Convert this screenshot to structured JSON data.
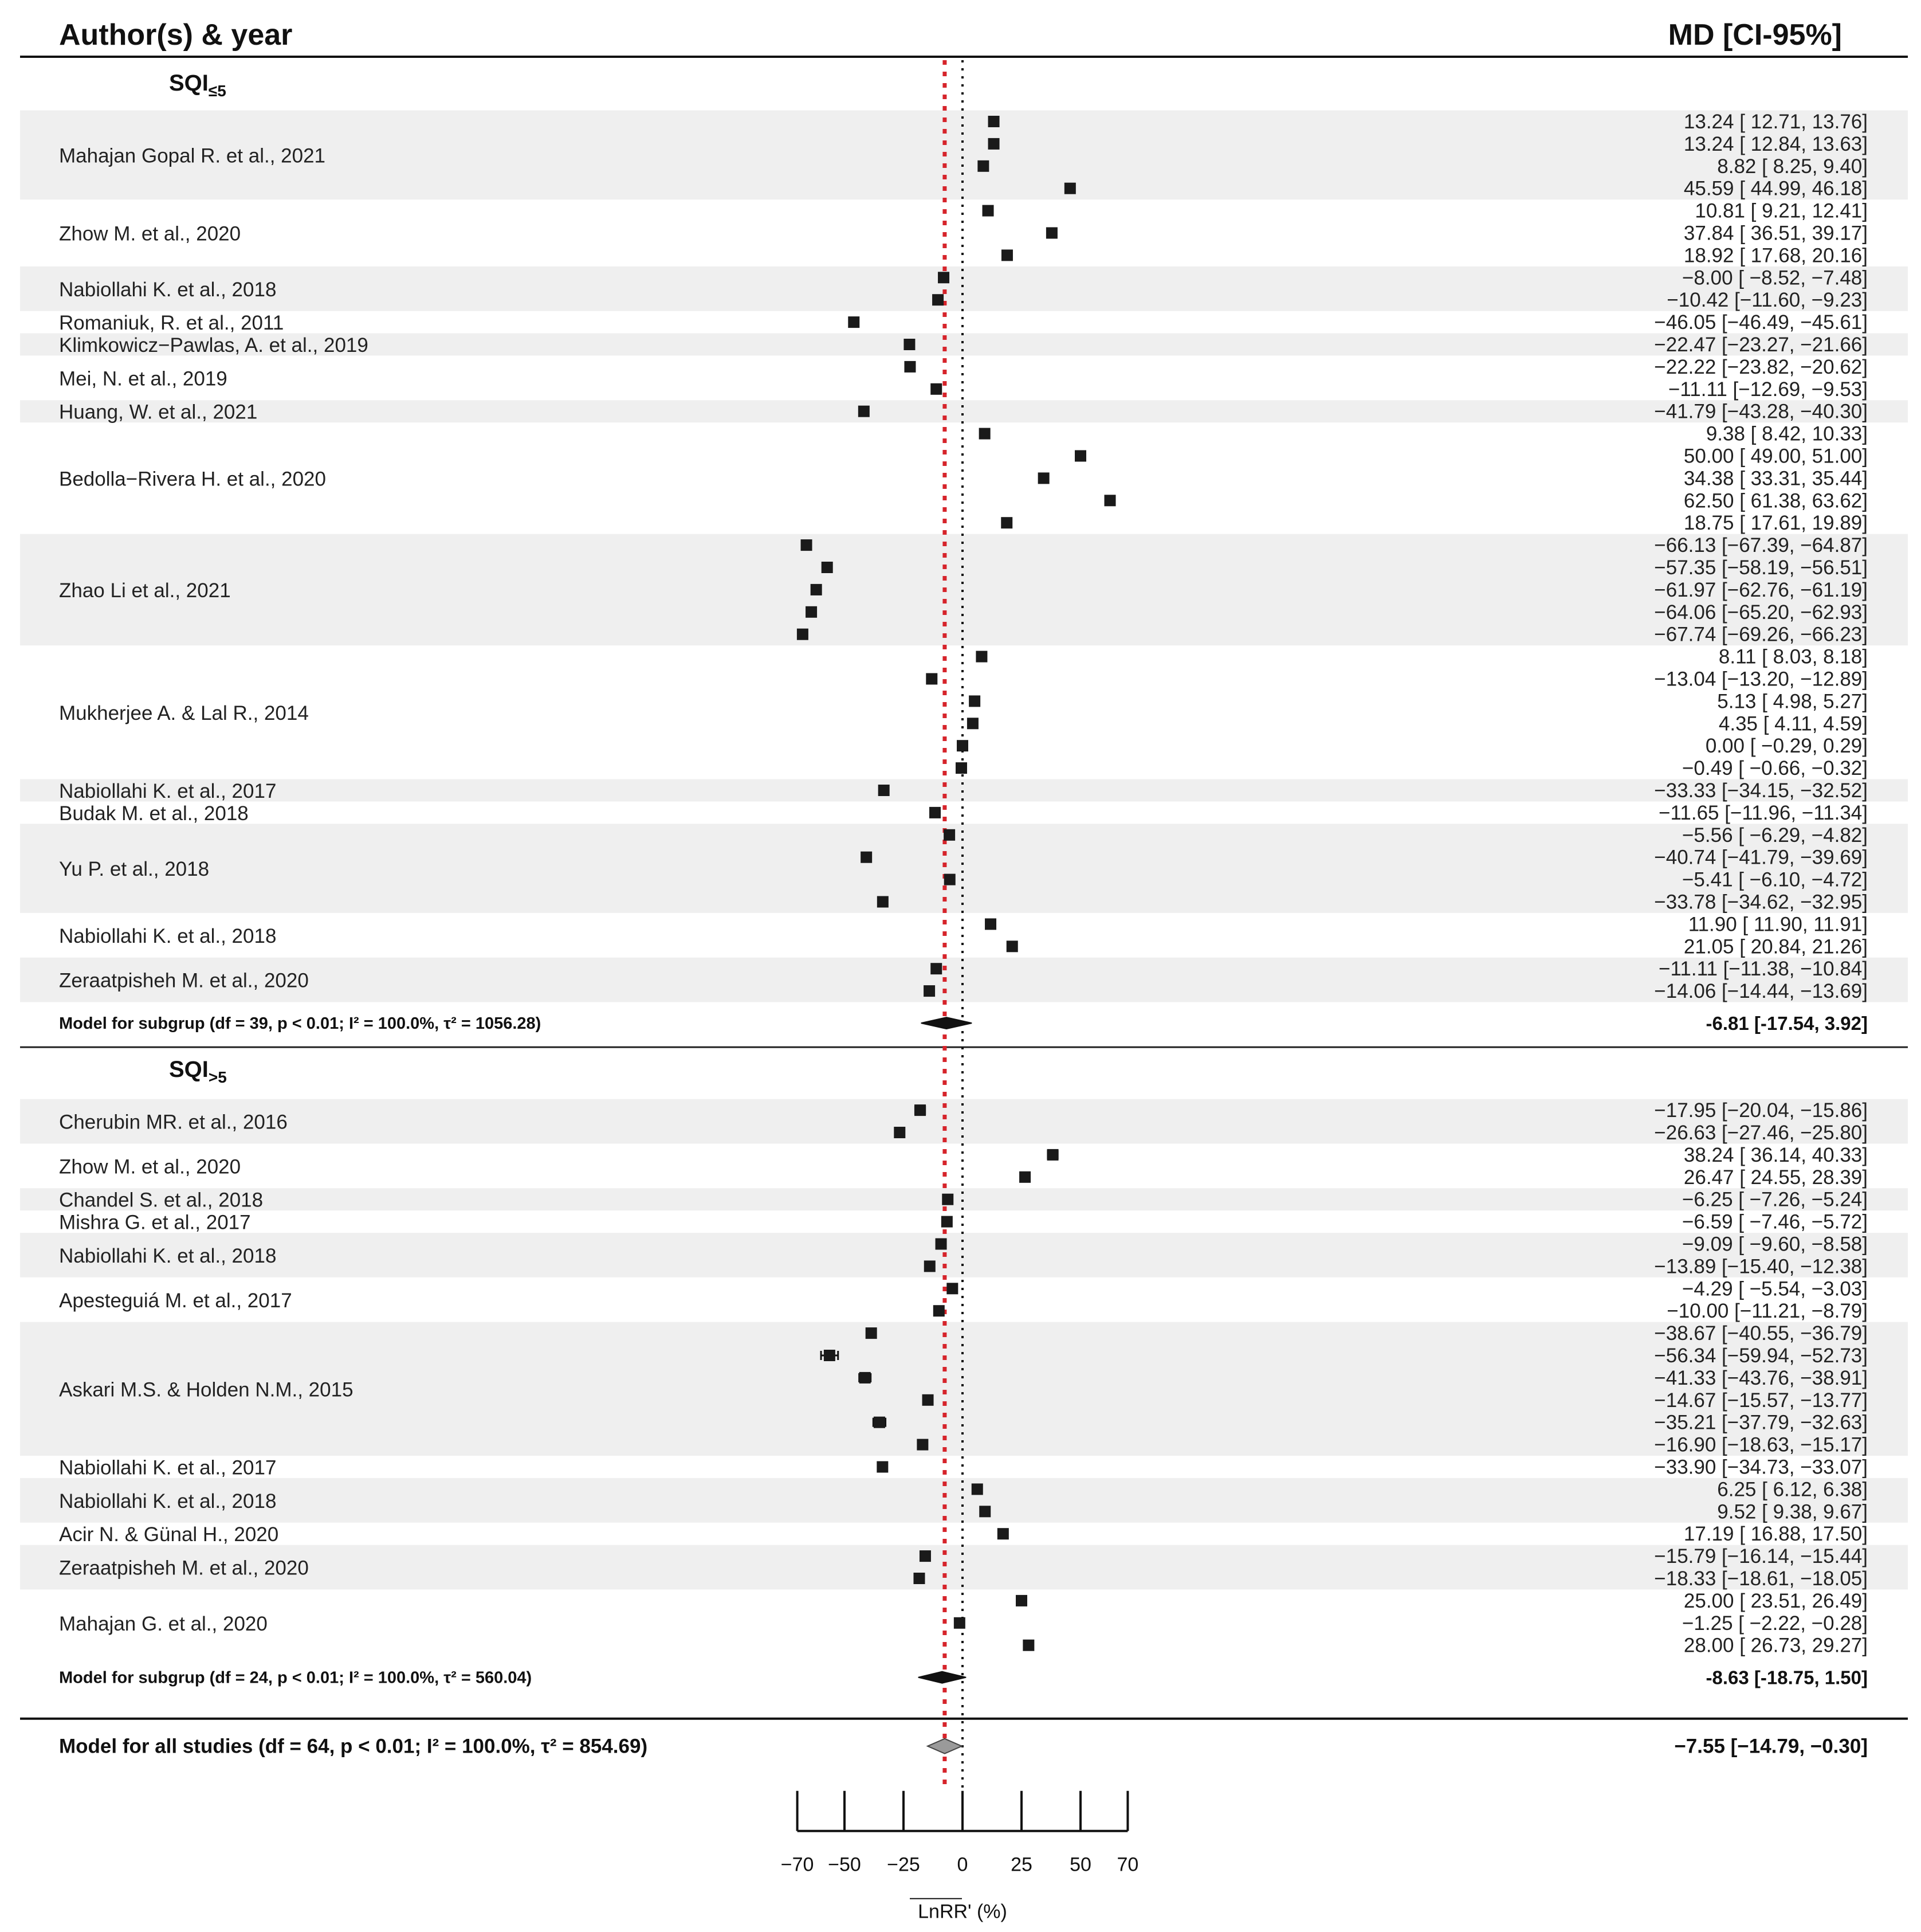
{
  "chart_data": {
    "type": "forest",
    "header_left": "Author(s) & year",
    "header_right": "MD [CI-95%]",
    "xlabel": "LnRR' (%)",
    "x_ticks": [
      -70,
      -50,
      -25,
      0,
      25,
      50,
      70
    ],
    "x_range": [
      -70,
      70
    ],
    "reference_line": 0,
    "overall_estimate_line": -7.55,
    "groups": [
      {
        "title_main": "SQI",
        "title_sub": "≤5",
        "model_label": "Model for subgrup (df = 39, p < 0.01; I² = 100.0%, τ² = 1056.28)",
        "model_text": "-6.81 [-17.54, 3.92]",
        "model": {
          "est": -6.81,
          "lo": -17.54,
          "hi": 3.92
        },
        "studies": [
          {
            "label": "Mahajan Gopal R. et al., 2021",
            "rows": [
              {
                "est": 13.24,
                "lo": 12.71,
                "hi": 13.76,
                "text": "13.24 [ 12.71,  13.76]"
              },
              {
                "est": 13.24,
                "lo": 12.84,
                "hi": 13.63,
                "text": "13.24 [ 12.84,  13.63]"
              },
              {
                "est": 8.82,
                "lo": 8.25,
                "hi": 9.4,
                "text": "8.82 [  8.25,   9.40]"
              },
              {
                "est": 45.59,
                "lo": 44.99,
                "hi": 46.18,
                "text": "45.59 [ 44.99,  46.18]"
              }
            ]
          },
          {
            "label": "Zhow M. et al., 2020",
            "rows": [
              {
                "est": 10.81,
                "lo": 9.21,
                "hi": 12.41,
                "text": "10.81 [  9.21,  12.41]"
              },
              {
                "est": 37.84,
                "lo": 36.51,
                "hi": 39.17,
                "text": "37.84 [ 36.51,  39.17]"
              },
              {
                "est": 18.92,
                "lo": 17.68,
                "hi": 20.16,
                "text": "18.92 [ 17.68,  20.16]"
              }
            ]
          },
          {
            "label": "Nabiollahi K. et al., 2018",
            "rows": [
              {
                "est": -8.0,
                "lo": -8.52,
                "hi": -7.48,
                "text": "−8.00 [ −8.52,  −7.48]"
              },
              {
                "est": -10.42,
                "lo": -11.6,
                "hi": -9.23,
                "text": "−10.42 [−11.60,  −9.23]"
              }
            ]
          },
          {
            "label": "Romaniuk, R. et al., 2011",
            "rows": [
              {
                "est": -46.05,
                "lo": -46.49,
                "hi": -45.61,
                "text": "−46.05 [−46.49, −45.61]"
              }
            ]
          },
          {
            "label": "Klimkowicz−Pawlas, A. et al., 2019",
            "rows": [
              {
                "est": -22.47,
                "lo": -23.27,
                "hi": -21.66,
                "text": "−22.47 [−23.27, −21.66]"
              }
            ]
          },
          {
            "label": "Mei, N. et al., 2019",
            "rows": [
              {
                "est": -22.22,
                "lo": -23.82,
                "hi": -20.62,
                "text": "−22.22 [−23.82, −20.62]"
              },
              {
                "est": -11.11,
                "lo": -12.69,
                "hi": -9.53,
                "text": "−11.11 [−12.69,  −9.53]"
              }
            ]
          },
          {
            "label": "Huang, W. et al., 2021",
            "rows": [
              {
                "est": -41.79,
                "lo": -43.28,
                "hi": -40.3,
                "text": "−41.79 [−43.28, −40.30]"
              }
            ]
          },
          {
            "label": "Bedolla−Rivera H. et al., 2020",
            "rows": [
              {
                "est": 9.38,
                "lo": 8.42,
                "hi": 10.33,
                "text": "9.38 [  8.42,  10.33]"
              },
              {
                "est": 50.0,
                "lo": 49.0,
                "hi": 51.0,
                "text": "50.00 [ 49.00,  51.00]"
              },
              {
                "est": 34.38,
                "lo": 33.31,
                "hi": 35.44,
                "text": "34.38 [ 33.31,  35.44]"
              },
              {
                "est": 62.5,
                "lo": 61.38,
                "hi": 63.62,
                "text": "62.50 [ 61.38,  63.62]"
              },
              {
                "est": 18.75,
                "lo": 17.61,
                "hi": 19.89,
                "text": "18.75 [ 17.61,  19.89]"
              }
            ]
          },
          {
            "label": "Zhao Li et al., 2021",
            "rows": [
              {
                "est": -66.13,
                "lo": -67.39,
                "hi": -64.87,
                "text": "−66.13 [−67.39, −64.87]"
              },
              {
                "est": -57.35,
                "lo": -58.19,
                "hi": -56.51,
                "text": "−57.35 [−58.19, −56.51]"
              },
              {
                "est": -61.97,
                "lo": -62.76,
                "hi": -61.19,
                "text": "−61.97 [−62.76, −61.19]"
              },
              {
                "est": -64.06,
                "lo": -65.2,
                "hi": -62.93,
                "text": "−64.06 [−65.20, −62.93]"
              },
              {
                "est": -67.74,
                "lo": -69.26,
                "hi": -66.23,
                "text": "−67.74 [−69.26, −66.23]"
              }
            ]
          },
          {
            "label": "Mukherjee A. & Lal R., 2014",
            "rows": [
              {
                "est": 8.11,
                "lo": 8.03,
                "hi": 8.18,
                "text": "8.11 [  8.03,   8.18]"
              },
              {
                "est": -13.04,
                "lo": -13.2,
                "hi": -12.89,
                "text": "−13.04 [−13.20, −12.89]"
              },
              {
                "est": 5.13,
                "lo": 4.98,
                "hi": 5.27,
                "text": "5.13 [  4.98,   5.27]"
              },
              {
                "est": 4.35,
                "lo": 4.11,
                "hi": 4.59,
                "text": "4.35 [  4.11,   4.59]"
              },
              {
                "est": 0.0,
                "lo": -0.29,
                "hi": 0.29,
                "text": "0.00 [ −0.29,   0.29]"
              },
              {
                "est": -0.49,
                "lo": -0.66,
                "hi": -0.32,
                "text": "−0.49 [ −0.66,  −0.32]"
              }
            ]
          },
          {
            "label": "Nabiollahi K. et al., 2017",
            "rows": [
              {
                "est": -33.33,
                "lo": -34.15,
                "hi": -32.52,
                "text": "−33.33 [−34.15, −32.52]"
              }
            ]
          },
          {
            "label": "Budak M. et al., 2018",
            "rows": [
              {
                "est": -11.65,
                "lo": -11.96,
                "hi": -11.34,
                "text": "−11.65 [−11.96, −11.34]"
              }
            ]
          },
          {
            "label": "Yu P. et al., 2018",
            "rows": [
              {
                "est": -5.56,
                "lo": -6.29,
                "hi": -4.82,
                "text": "−5.56 [ −6.29,  −4.82]"
              },
              {
                "est": -40.74,
                "lo": -41.79,
                "hi": -39.69,
                "text": "−40.74 [−41.79, −39.69]"
              },
              {
                "est": -5.41,
                "lo": -6.1,
                "hi": -4.72,
                "text": "−5.41 [ −6.10,  −4.72]"
              },
              {
                "est": -33.78,
                "lo": -34.62,
                "hi": -32.95,
                "text": "−33.78 [−34.62, −32.95]"
              }
            ]
          },
          {
            "label": "Nabiollahi K. et al., 2018",
            "rows": [
              {
                "est": 11.9,
                "lo": 11.9,
                "hi": 11.91,
                "text": "11.90 [ 11.90,  11.91]"
              },
              {
                "est": 21.05,
                "lo": 20.84,
                "hi": 21.26,
                "text": "21.05 [ 20.84,  21.26]"
              }
            ]
          },
          {
            "label": "Zeraatpisheh M. et al., 2020",
            "rows": [
              {
                "est": -11.11,
                "lo": -11.38,
                "hi": -10.84,
                "text": "−11.11 [−11.38, −10.84]"
              },
              {
                "est": -14.06,
                "lo": -14.44,
                "hi": -13.69,
                "text": "−14.06 [−14.44, −13.69]"
              }
            ]
          }
        ]
      },
      {
        "title_main": "SQI",
        "title_sub": ">5",
        "model_label": "Model for subgrup (df = 24, p < 0.01; I² = 100.0%, τ² = 560.04)",
        "model_text": "-8.63 [-18.75, 1.50]",
        "model": {
          "est": -8.63,
          "lo": -18.75,
          "hi": 1.5
        },
        "studies": [
          {
            "label": "Cherubin MR. et al., 2016",
            "rows": [
              {
                "est": -17.95,
                "lo": -20.04,
                "hi": -15.86,
                "text": "−17.95 [−20.04, −15.86]"
              },
              {
                "est": -26.63,
                "lo": -27.46,
                "hi": -25.8,
                "text": "−26.63 [−27.46, −25.80]"
              }
            ]
          },
          {
            "label": "Zhow M. et al., 2020",
            "rows": [
              {
                "est": 38.24,
                "lo": 36.14,
                "hi": 40.33,
                "text": "38.24 [ 36.14,  40.33]"
              },
              {
                "est": 26.47,
                "lo": 24.55,
                "hi": 28.39,
                "text": "26.47 [ 24.55,  28.39]"
              }
            ]
          },
          {
            "label": "Chandel S. et al., 2018",
            "rows": [
              {
                "est": -6.25,
                "lo": -7.26,
                "hi": -5.24,
                "text": "−6.25 [ −7.26,  −5.24]"
              }
            ]
          },
          {
            "label": "Mishra G. et al., 2017",
            "rows": [
              {
                "est": -6.59,
                "lo": -7.46,
                "hi": -5.72,
                "text": "−6.59 [ −7.46,  −5.72]"
              }
            ]
          },
          {
            "label": "Nabiollahi K. et al., 2018",
            "rows": [
              {
                "est": -9.09,
                "lo": -9.6,
                "hi": -8.58,
                "text": "−9.09 [ −9.60,  −8.58]"
              },
              {
                "est": -13.89,
                "lo": -15.4,
                "hi": -12.38,
                "text": "−13.89 [−15.40, −12.38]"
              }
            ]
          },
          {
            "label": "Apesteguiá M. et al., 2017",
            "rows": [
              {
                "est": -4.29,
                "lo": -5.54,
                "hi": -3.03,
                "text": "−4.29 [ −5.54,  −3.03]"
              },
              {
                "est": -10.0,
                "lo": -11.21,
                "hi": -8.79,
                "text": "−10.00 [−11.21,  −8.79]"
              }
            ]
          },
          {
            "label": "Askari M.S. & Holden N.M., 2015",
            "rows": [
              {
                "est": -38.67,
                "lo": -40.55,
                "hi": -36.79,
                "text": "−38.67 [−40.55, −36.79]"
              },
              {
                "est": -56.34,
                "lo": -59.94,
                "hi": -52.73,
                "text": "−56.34 [−59.94, −52.73]"
              },
              {
                "est": -41.33,
                "lo": -43.76,
                "hi": -38.91,
                "text": "−41.33 [−43.76, −38.91]"
              },
              {
                "est": -14.67,
                "lo": -15.57,
                "hi": -13.77,
                "text": "−14.67 [−15.57, −13.77]"
              },
              {
                "est": -35.21,
                "lo": -37.79,
                "hi": -32.63,
                "text": "−35.21 [−37.79, −32.63]"
              },
              {
                "est": -16.9,
                "lo": -18.63,
                "hi": -15.17,
                "text": "−16.90 [−18.63, −15.17]"
              }
            ]
          },
          {
            "label": "Nabiollahi K. et al., 2017",
            "rows": [
              {
                "est": -33.9,
                "lo": -34.73,
                "hi": -33.07,
                "text": "−33.90 [−34.73, −33.07]"
              }
            ]
          },
          {
            "label": "Nabiollahi K. et al., 2018",
            "rows": [
              {
                "est": 6.25,
                "lo": 6.12,
                "hi": 6.38,
                "text": "6.25 [  6.12,   6.38]"
              },
              {
                "est": 9.52,
                "lo": 9.38,
                "hi": 9.67,
                "text": "9.52 [  9.38,   9.67]"
              }
            ]
          },
          {
            "label": "Acir N. & Günal H., 2020",
            "rows": [
              {
                "est": 17.19,
                "lo": 16.88,
                "hi": 17.5,
                "text": "17.19 [ 16.88,  17.50]"
              }
            ]
          },
          {
            "label": "Zeraatpisheh M. et al., 2020",
            "rows": [
              {
                "est": -15.79,
                "lo": -16.14,
                "hi": -15.44,
                "text": "−15.79 [−16.14, −15.44]"
              },
              {
                "est": -18.33,
                "lo": -18.61,
                "hi": -18.05,
                "text": "−18.33 [−18.61, −18.05]"
              }
            ]
          },
          {
            "label": "Mahajan G. et al., 2020",
            "rows": [
              {
                "est": 25.0,
                "lo": 23.51,
                "hi": 26.49,
                "text": "25.00 [ 23.51,  26.49]"
              },
              {
                "est": -1.25,
                "lo": -2.22,
                "hi": -0.28,
                "text": "−1.25 [ −2.22,  −0.28]"
              },
              {
                "est": 28.0,
                "lo": 26.73,
                "hi": 29.27,
                "text": "28.00 [ 26.73,  29.27]"
              }
            ]
          }
        ]
      }
    ],
    "overall_label": "Model for all studies (df = 64, p < 0.01; I² = 100.0%, τ² = 854.69)",
    "overall_text": "−7.55 [−14.79,  −0.30]",
    "overall": {
      "est": -7.55,
      "lo": -14.79,
      "hi": -0.3
    }
  }
}
